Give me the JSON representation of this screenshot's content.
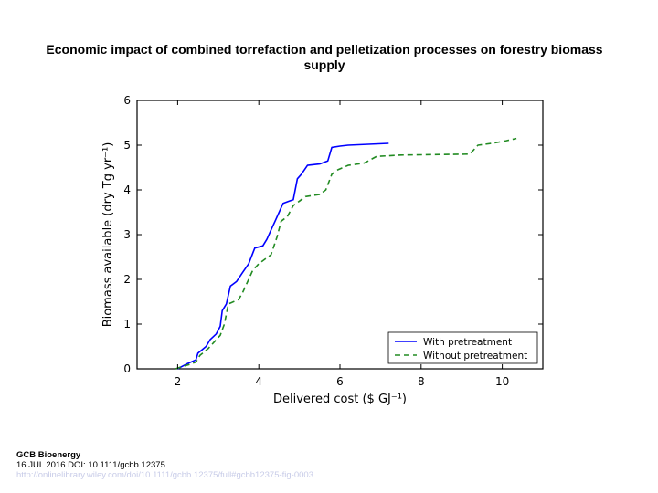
{
  "slide": {
    "title": "Economic impact of combined torrefaction and pelletization processes on forestry biomass supply"
  },
  "footer": {
    "journal": "GCB Bioenergy",
    "citation": "16 JUL 2016 DOI: 10.1111/gcbb.12375",
    "link": "http://onlinelibrary.wiley.com/doi/10.1111/gcbb.12375/full#gcbb12375-fig-0003"
  },
  "chart_data": {
    "type": "line",
    "title": "",
    "xlabel": "Delivered cost ($ GJ⁻¹)",
    "ylabel": "Biomass available (dry Tg yr⁻¹)",
    "xlim": [
      1,
      11
    ],
    "ylim": [
      0,
      6
    ],
    "xticks": [
      2,
      4,
      6,
      8,
      10
    ],
    "yticks": [
      0,
      1,
      2,
      3,
      4,
      5,
      6
    ],
    "grid": false,
    "legend": "bottom-right",
    "series": [
      {
        "name": "With pretreatment",
        "color": "#0000ff",
        "dash": "solid",
        "points": [
          [
            2.0,
            0.0
          ],
          [
            2.1,
            0.05
          ],
          [
            2.25,
            0.12
          ],
          [
            2.45,
            0.2
          ],
          [
            2.5,
            0.35
          ],
          [
            2.7,
            0.5
          ],
          [
            2.8,
            0.65
          ],
          [
            2.95,
            0.78
          ],
          [
            3.05,
            0.95
          ],
          [
            3.1,
            1.3
          ],
          [
            3.2,
            1.45
          ],
          [
            3.3,
            1.85
          ],
          [
            3.45,
            1.95
          ],
          [
            3.6,
            2.15
          ],
          [
            3.75,
            2.35
          ],
          [
            3.9,
            2.7
          ],
          [
            4.1,
            2.75
          ],
          [
            4.2,
            2.9
          ],
          [
            4.3,
            3.1
          ],
          [
            4.4,
            3.3
          ],
          [
            4.5,
            3.5
          ],
          [
            4.6,
            3.7
          ],
          [
            4.75,
            3.75
          ],
          [
            4.85,
            3.78
          ],
          [
            4.95,
            4.25
          ],
          [
            5.05,
            4.35
          ],
          [
            5.2,
            4.55
          ],
          [
            5.5,
            4.58
          ],
          [
            5.7,
            4.65
          ],
          [
            5.8,
            4.95
          ],
          [
            6.0,
            4.98
          ],
          [
            6.2,
            5.0
          ],
          [
            7.2,
            5.04
          ]
        ]
      },
      {
        "name": "Without pretreatment",
        "color": "#228b22",
        "dash": "6,4",
        "points": [
          [
            1.95,
            0.0
          ],
          [
            2.1,
            0.05
          ],
          [
            2.3,
            0.1
          ],
          [
            2.45,
            0.15
          ],
          [
            2.55,
            0.3
          ],
          [
            2.75,
            0.45
          ],
          [
            2.9,
            0.6
          ],
          [
            3.05,
            0.75
          ],
          [
            3.15,
            1.0
          ],
          [
            3.25,
            1.45
          ],
          [
            3.5,
            1.55
          ],
          [
            3.6,
            1.7
          ],
          [
            3.75,
            2.0
          ],
          [
            3.85,
            2.2
          ],
          [
            4.0,
            2.35
          ],
          [
            4.15,
            2.45
          ],
          [
            4.3,
            2.55
          ],
          [
            4.45,
            2.95
          ],
          [
            4.55,
            3.3
          ],
          [
            4.7,
            3.4
          ],
          [
            4.85,
            3.65
          ],
          [
            5.0,
            3.75
          ],
          [
            5.15,
            3.85
          ],
          [
            5.5,
            3.9
          ],
          [
            5.65,
            4.0
          ],
          [
            5.8,
            4.35
          ],
          [
            5.95,
            4.45
          ],
          [
            6.2,
            4.55
          ],
          [
            6.6,
            4.6
          ],
          [
            6.9,
            4.75
          ],
          [
            7.5,
            4.78
          ],
          [
            9.2,
            4.8
          ],
          [
            9.4,
            5.0
          ],
          [
            9.8,
            5.05
          ],
          [
            10.1,
            5.1
          ],
          [
            10.35,
            5.15
          ]
        ]
      }
    ]
  }
}
